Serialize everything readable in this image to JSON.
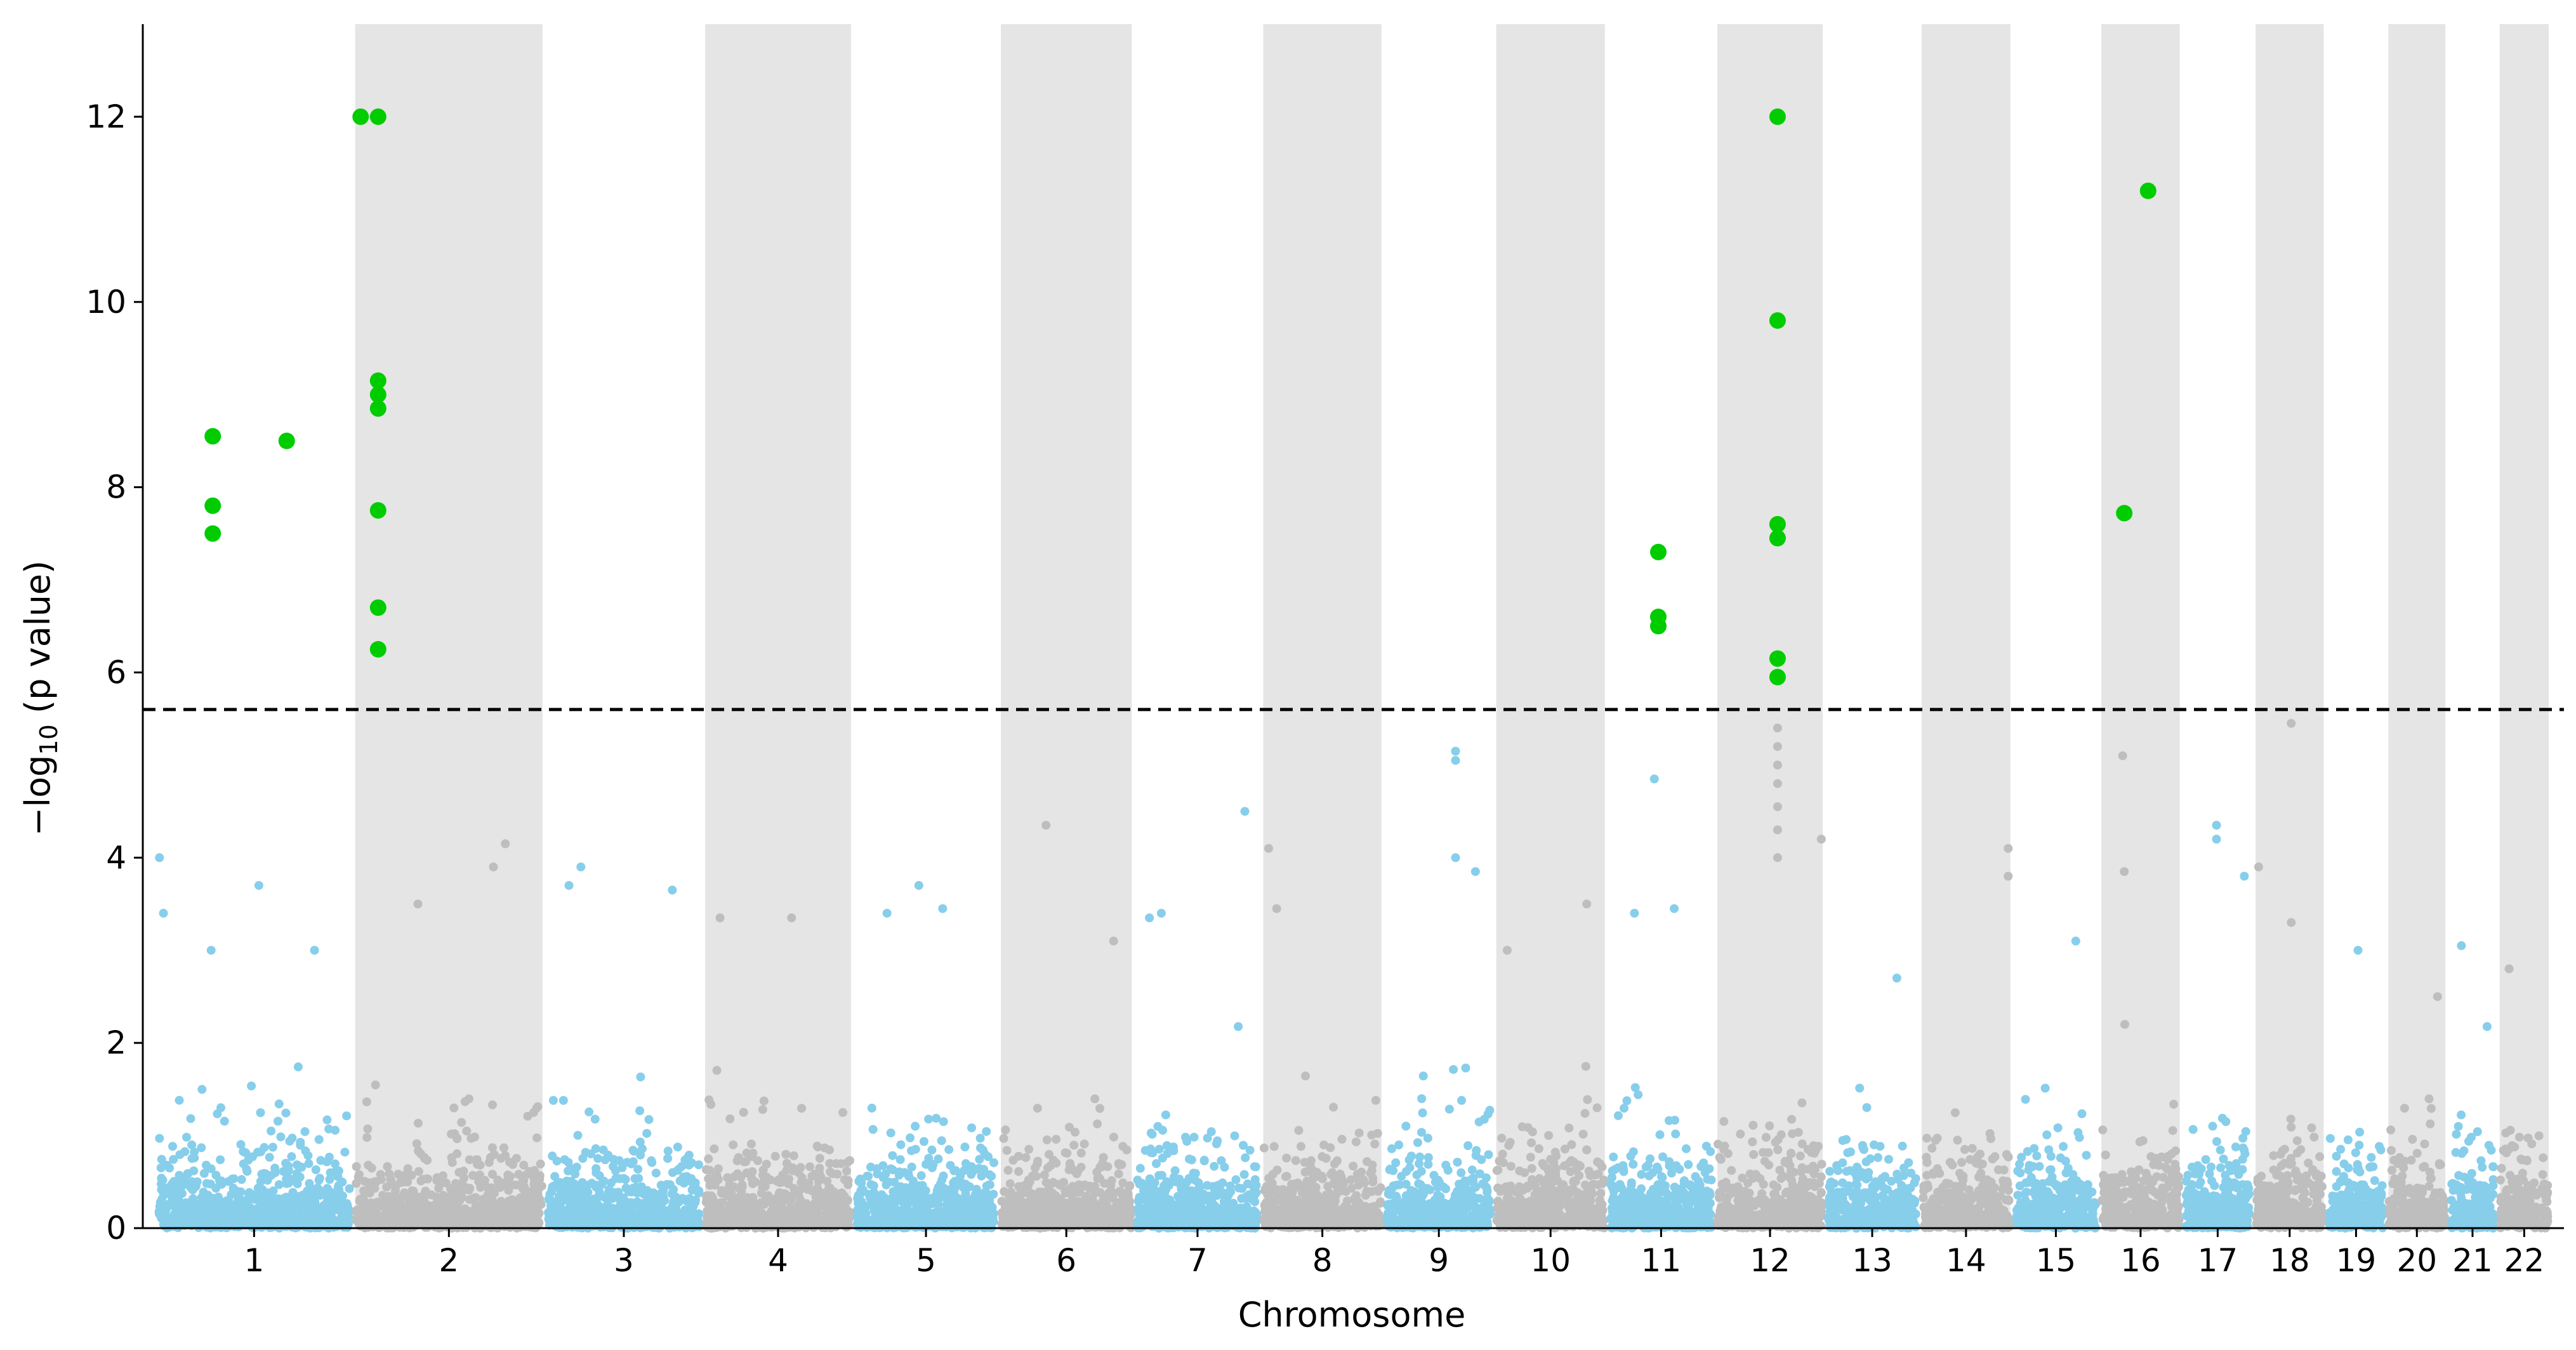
{
  "chart_data": {
    "type": "scatter",
    "subtype": "manhattan",
    "title": "",
    "xlabel": "Chromosome",
    "ylabel": {
      "prefix": "−log",
      "subscript": "10",
      "suffix": " (p value)"
    },
    "ylim": [
      0,
      13
    ],
    "yticks": [
      0,
      2,
      4,
      6,
      8,
      10,
      12
    ],
    "grid": false,
    "legend": "none",
    "threshold": 5.6,
    "colors": {
      "odd": "#87ceeb",
      "even": "#bebebe",
      "band": "#e5e5e5",
      "significant": "#00cc00",
      "threshold": "#000000"
    },
    "chromosomes": [
      {
        "label": "1",
        "start": 0,
        "end": 248
      },
      {
        "label": "2",
        "start": 248,
        "end": 490
      },
      {
        "label": "3",
        "start": 490,
        "end": 688
      },
      {
        "label": "4",
        "start": 688,
        "end": 878
      },
      {
        "label": "5",
        "start": 878,
        "end": 1060
      },
      {
        "label": "6",
        "start": 1060,
        "end": 1231
      },
      {
        "label": "7",
        "start": 1231,
        "end": 1390
      },
      {
        "label": "8",
        "start": 1390,
        "end": 1545
      },
      {
        "label": "9",
        "start": 1545,
        "end": 1683
      },
      {
        "label": "10",
        "start": 1683,
        "end": 1826
      },
      {
        "label": "11",
        "start": 1826,
        "end": 1961
      },
      {
        "label": "12",
        "start": 1961,
        "end": 2100
      },
      {
        "label": "13",
        "start": 2100,
        "end": 2218
      },
      {
        "label": "14",
        "start": 2218,
        "end": 2336
      },
      {
        "label": "15",
        "start": 2336,
        "end": 2444
      },
      {
        "label": "16",
        "start": 2444,
        "end": 2549
      },
      {
        "label": "17",
        "start": 2549,
        "end": 2638
      },
      {
        "label": "18",
        "start": 2638,
        "end": 2730
      },
      {
        "label": "19",
        "start": 2730,
        "end": 2805
      },
      {
        "label": "20",
        "start": 2805,
        "end": 2883
      },
      {
        "label": "21",
        "start": 2883,
        "end": 2945
      },
      {
        "label": "22",
        "start": 2945,
        "end": 3013
      }
    ],
    "significant": [
      {
        "x": 72,
        "y": 8.55
      },
      {
        "x": 72,
        "y": 7.8
      },
      {
        "x": 72,
        "y": 7.5
      },
      {
        "x": 165,
        "y": 8.5
      },
      {
        "x": 258,
        "y": 12.0
      },
      {
        "x": 280,
        "y": 12.0
      },
      {
        "x": 280,
        "y": 9.15
      },
      {
        "x": 280,
        "y": 9.0
      },
      {
        "x": 280,
        "y": 8.85
      },
      {
        "x": 280,
        "y": 7.75
      },
      {
        "x": 280,
        "y": 6.7
      },
      {
        "x": 280,
        "y": 6.25
      },
      {
        "x": 1890,
        "y": 7.3
      },
      {
        "x": 1890,
        "y": 6.6
      },
      {
        "x": 1890,
        "y": 6.5
      },
      {
        "x": 2040,
        "y": 12.0
      },
      {
        "x": 2040,
        "y": 9.8
      },
      {
        "x": 2040,
        "y": 7.6
      },
      {
        "x": 2040,
        "y": 7.45
      },
      {
        "x": 2040,
        "y": 6.15
      },
      {
        "x": 2040,
        "y": 5.95
      },
      {
        "x": 2476,
        "y": 7.72
      },
      {
        "x": 2506,
        "y": 11.2
      }
    ],
    "peaks": [
      {
        "x": 5,
        "y": 4.0
      },
      {
        "x": 10,
        "y": 3.4
      },
      {
        "x": 70,
        "y": 3.0
      },
      {
        "x": 130,
        "y": 3.7
      },
      {
        "x": 200,
        "y": 3.0
      },
      {
        "x": 330,
        "y": 3.5
      },
      {
        "x": 440,
        "y": 4.15
      },
      {
        "x": 425,
        "y": 3.9
      },
      {
        "x": 520,
        "y": 3.7
      },
      {
        "x": 535,
        "y": 3.9
      },
      {
        "x": 650,
        "y": 3.65
      },
      {
        "x": 710,
        "y": 3.35
      },
      {
        "x": 800,
        "y": 3.35
      },
      {
        "x": 960,
        "y": 3.7
      },
      {
        "x": 990,
        "y": 3.45
      },
      {
        "x": 920,
        "y": 3.4
      },
      {
        "x": 1120,
        "y": 4.35
      },
      {
        "x": 1205,
        "y": 3.1
      },
      {
        "x": 1250,
        "y": 3.35
      },
      {
        "x": 1265,
        "y": 3.4
      },
      {
        "x": 1370,
        "y": 4.5
      },
      {
        "x": 1400,
        "y": 4.1
      },
      {
        "x": 1410,
        "y": 3.45
      },
      {
        "x": 1635,
        "y": 5.15
      },
      {
        "x": 1635,
        "y": 5.05
      },
      {
        "x": 1635,
        "y": 4.0
      },
      {
        "x": 1660,
        "y": 3.85
      },
      {
        "x": 1700,
        "y": 3.0
      },
      {
        "x": 1800,
        "y": 3.5
      },
      {
        "x": 1860,
        "y": 3.4
      },
      {
        "x": 1885,
        "y": 4.85
      },
      {
        "x": 1910,
        "y": 3.45
      },
      {
        "x": 2040,
        "y": 5.4
      },
      {
        "x": 2040,
        "y": 5.2
      },
      {
        "x": 2040,
        "y": 5.0
      },
      {
        "x": 2040,
        "y": 4.8
      },
      {
        "x": 2040,
        "y": 4.55
      },
      {
        "x": 2040,
        "y": 4.3
      },
      {
        "x": 2040,
        "y": 4.0
      },
      {
        "x": 2095,
        "y": 4.2
      },
      {
        "x": 2190,
        "y": 2.7
      },
      {
        "x": 2330,
        "y": 4.1
      },
      {
        "x": 2330,
        "y": 3.8
      },
      {
        "x": 2415,
        "y": 3.1
      },
      {
        "x": 2474,
        "y": 5.1
      },
      {
        "x": 2476,
        "y": 3.85
      },
      {
        "x": 2592,
        "y": 4.35
      },
      {
        "x": 2592,
        "y": 4.2
      },
      {
        "x": 2627,
        "y": 3.8
      },
      {
        "x": 2645,
        "y": 3.9
      },
      {
        "x": 2686,
        "y": 5.45
      },
      {
        "x": 2686,
        "y": 3.3
      },
      {
        "x": 2770,
        "y": 3.0
      },
      {
        "x": 2870,
        "y": 2.5
      },
      {
        "x": 2900,
        "y": 3.05
      },
      {
        "x": 2960,
        "y": 2.8
      }
    ]
  }
}
